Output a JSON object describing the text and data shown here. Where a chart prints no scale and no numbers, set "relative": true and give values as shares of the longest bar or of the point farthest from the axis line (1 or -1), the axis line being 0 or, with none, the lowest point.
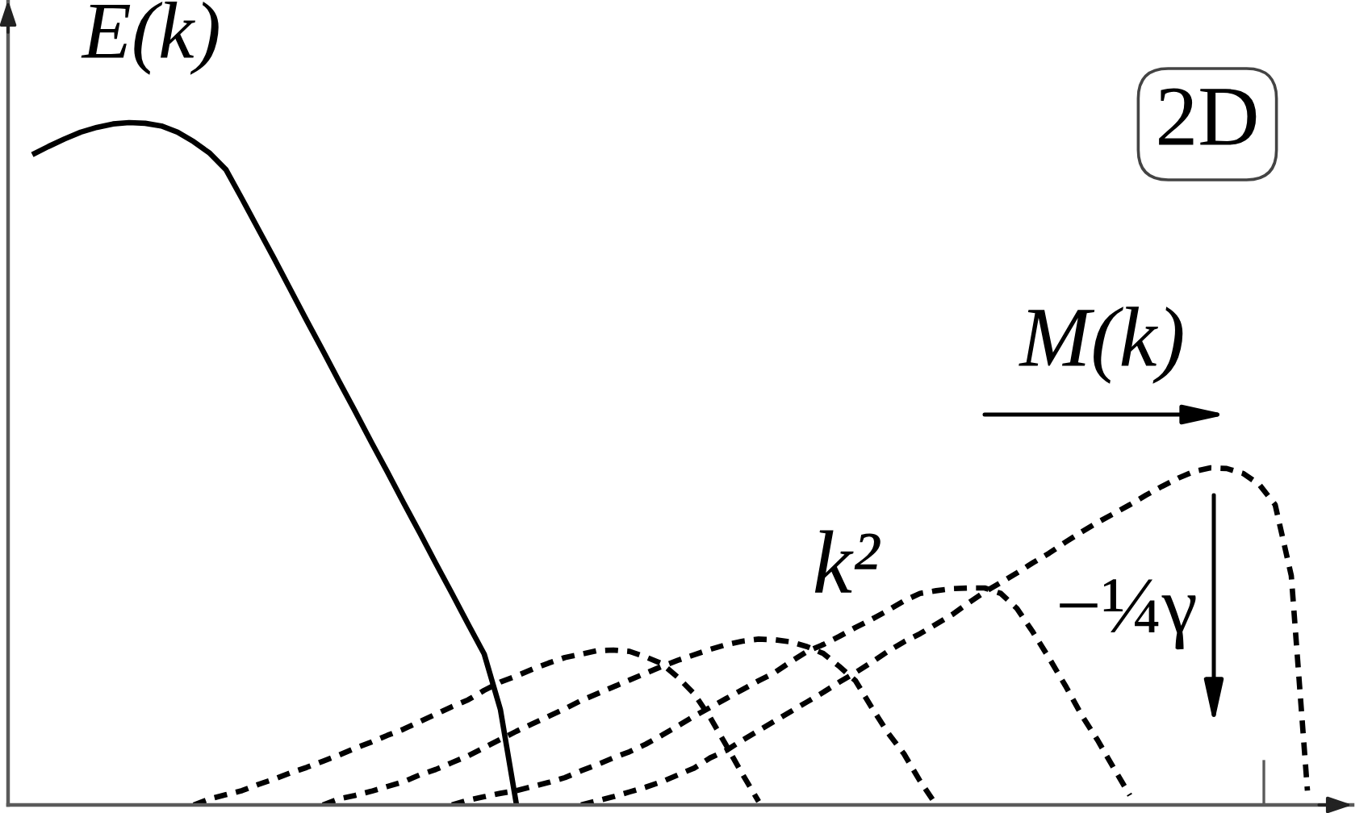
{
  "chart_data": {
    "type": "line",
    "relative": true,
    "categories": [
      null,
      null,
      null,
      null,
      null,
      null,
      null,
      null,
      null,
      null,
      null,
      null,
      null,
      null,
      null,
      null,
      null,
      null,
      null,
      null,
      null,
      null,
      null,
      null,
      null,
      null,
      null,
      null,
      null,
      null,
      null,
      null,
      null,
      null,
      null,
      null,
      null,
      null,
      null,
      null,
      null,
      null,
      null,
      null,
      null,
      null,
      null,
      null,
      null,
      null,
      null,
      null,
      null,
      null,
      null,
      null,
      null,
      null,
      null,
      null,
      null,
      null,
      null,
      null,
      null,
      null,
      null,
      null,
      null,
      null,
      null,
      null,
      null,
      null,
      null,
      null,
      null,
      null,
      null,
      null,
      null
    ],
    "series": [
      {
        "name": "E(k)",
        "color": "#000000",
        "line_style": "solid",
        "values": [
          0.953,
          0.965,
          0.976,
          0.986,
          0.993,
          0.998,
          1.0,
          0.999,
          0.995,
          0.986,
          0.972,
          0.955,
          0.931,
          0.888,
          0.844,
          0.8,
          0.755,
          0.71,
          0.666,
          0.621,
          0.577,
          0.532,
          0.488,
          0.443,
          0.399,
          0.354,
          0.31,
          0.265,
          0.221,
          0.14,
          0.0,
          null,
          null,
          null,
          null,
          null,
          null,
          null,
          null,
          null,
          null,
          null,
          null,
          null,
          null,
          null,
          null,
          null,
          null,
          null,
          null,
          null,
          null,
          null,
          null,
          null,
          null,
          null,
          null,
          null,
          null,
          null,
          null,
          null,
          null,
          null,
          null,
          null,
          null,
          null,
          null,
          null,
          null,
          null,
          null,
          null,
          null,
          null,
          null,
          null,
          null
        ]
      },
      {
        "color": "#000000",
        "line_style": "dashed",
        "values": [
          null,
          null,
          null,
          null,
          null,
          null,
          null,
          null,
          null,
          null,
          0.0,
          0.009,
          0.015,
          0.021,
          0.03,
          0.038,
          0.047,
          0.055,
          0.064,
          0.073,
          0.083,
          0.092,
          0.102,
          0.111,
          0.122,
          0.133,
          0.144,
          0.154,
          0.168,
          0.18,
          0.189,
          0.199,
          0.208,
          0.216,
          0.221,
          0.226,
          0.227,
          0.225,
          0.217,
          0.207,
          0.187,
          0.163,
          0.128,
          0.087,
          0.045,
          0.005,
          null,
          null,
          null,
          null,
          null,
          null,
          null,
          null,
          null,
          null,
          null,
          null,
          null,
          null,
          null,
          null,
          null,
          null,
          null,
          null,
          null,
          null,
          null,
          null,
          null,
          null,
          null,
          null,
          null,
          null,
          null,
          null,
          null,
          null,
          null
        ]
      },
      {
        "color": "#000000",
        "line_style": "dashed",
        "values": [
          null,
          null,
          null,
          null,
          null,
          null,
          null,
          null,
          null,
          null,
          null,
          null,
          null,
          null,
          null,
          null,
          null,
          null,
          0.0,
          0.009,
          0.014,
          0.02,
          0.027,
          0.034,
          0.044,
          0.052,
          0.062,
          0.072,
          0.084,
          0.096,
          0.108,
          0.119,
          0.13,
          0.141,
          0.153,
          0.163,
          0.173,
          0.183,
          0.193,
          0.203,
          0.212,
          0.22,
          0.228,
          0.235,
          0.24,
          0.243,
          0.242,
          0.239,
          0.232,
          0.222,
          0.203,
          0.182,
          0.143,
          0.106,
          0.075,
          0.035,
          0.0,
          null,
          null,
          null,
          null,
          null,
          null,
          null,
          null,
          null,
          null,
          null,
          null,
          null,
          null,
          null,
          null,
          null,
          null,
          null,
          null,
          null,
          null,
          null,
          null
        ]
      },
      {
        "color": "#000000",
        "line_style": "dashed",
        "values": [
          null,
          null,
          null,
          null,
          null,
          null,
          null,
          null,
          null,
          null,
          null,
          null,
          null,
          null,
          null,
          null,
          null,
          null,
          null,
          null,
          null,
          null,
          null,
          null,
          null,
          null,
          0.0,
          0.007,
          0.012,
          0.017,
          0.021,
          0.027,
          0.033,
          0.04,
          0.05,
          0.059,
          0.069,
          0.078,
          0.089,
          0.102,
          0.116,
          0.13,
          0.143,
          0.156,
          0.169,
          0.182,
          0.194,
          0.21,
          0.225,
          0.235,
          0.247,
          0.26,
          0.272,
          0.285,
          0.299,
          0.31,
          0.314,
          0.317,
          0.318,
          0.318,
          0.31,
          0.288,
          0.253,
          0.215,
          0.175,
          0.132,
          0.095,
          0.054,
          0.014,
          null,
          null,
          null,
          null,
          null,
          null,
          null,
          null,
          null,
          null,
          null,
          null
        ]
      },
      {
        "color": "#000000",
        "line_style": "dashed",
        "values": [
          null,
          null,
          null,
          null,
          null,
          null,
          null,
          null,
          null,
          null,
          null,
          null,
          null,
          null,
          null,
          null,
          null,
          null,
          null,
          null,
          null,
          null,
          null,
          null,
          null,
          null,
          null,
          null,
          null,
          null,
          null,
          null,
          null,
          null,
          0.0,
          0.006,
          0.012,
          0.019,
          0.026,
          0.034,
          0.044,
          0.054,
          0.069,
          0.08,
          0.095,
          0.109,
          0.123,
          0.137,
          0.151,
          0.165,
          0.18,
          0.194,
          0.209,
          0.225,
          0.239,
          0.251,
          0.265,
          0.279,
          0.296,
          0.312,
          0.326,
          0.34,
          0.355,
          0.369,
          0.385,
          0.4,
          0.414,
          0.427,
          0.44,
          0.454,
          0.467,
          0.479,
          0.489,
          0.494,
          0.493,
          0.486,
          0.47,
          0.44,
          0.336,
          0.021,
          null
        ]
      }
    ],
    "annotations": [
      "2D",
      "M(k)",
      "k²",
      "−¼γ"
    ]
  }
}
